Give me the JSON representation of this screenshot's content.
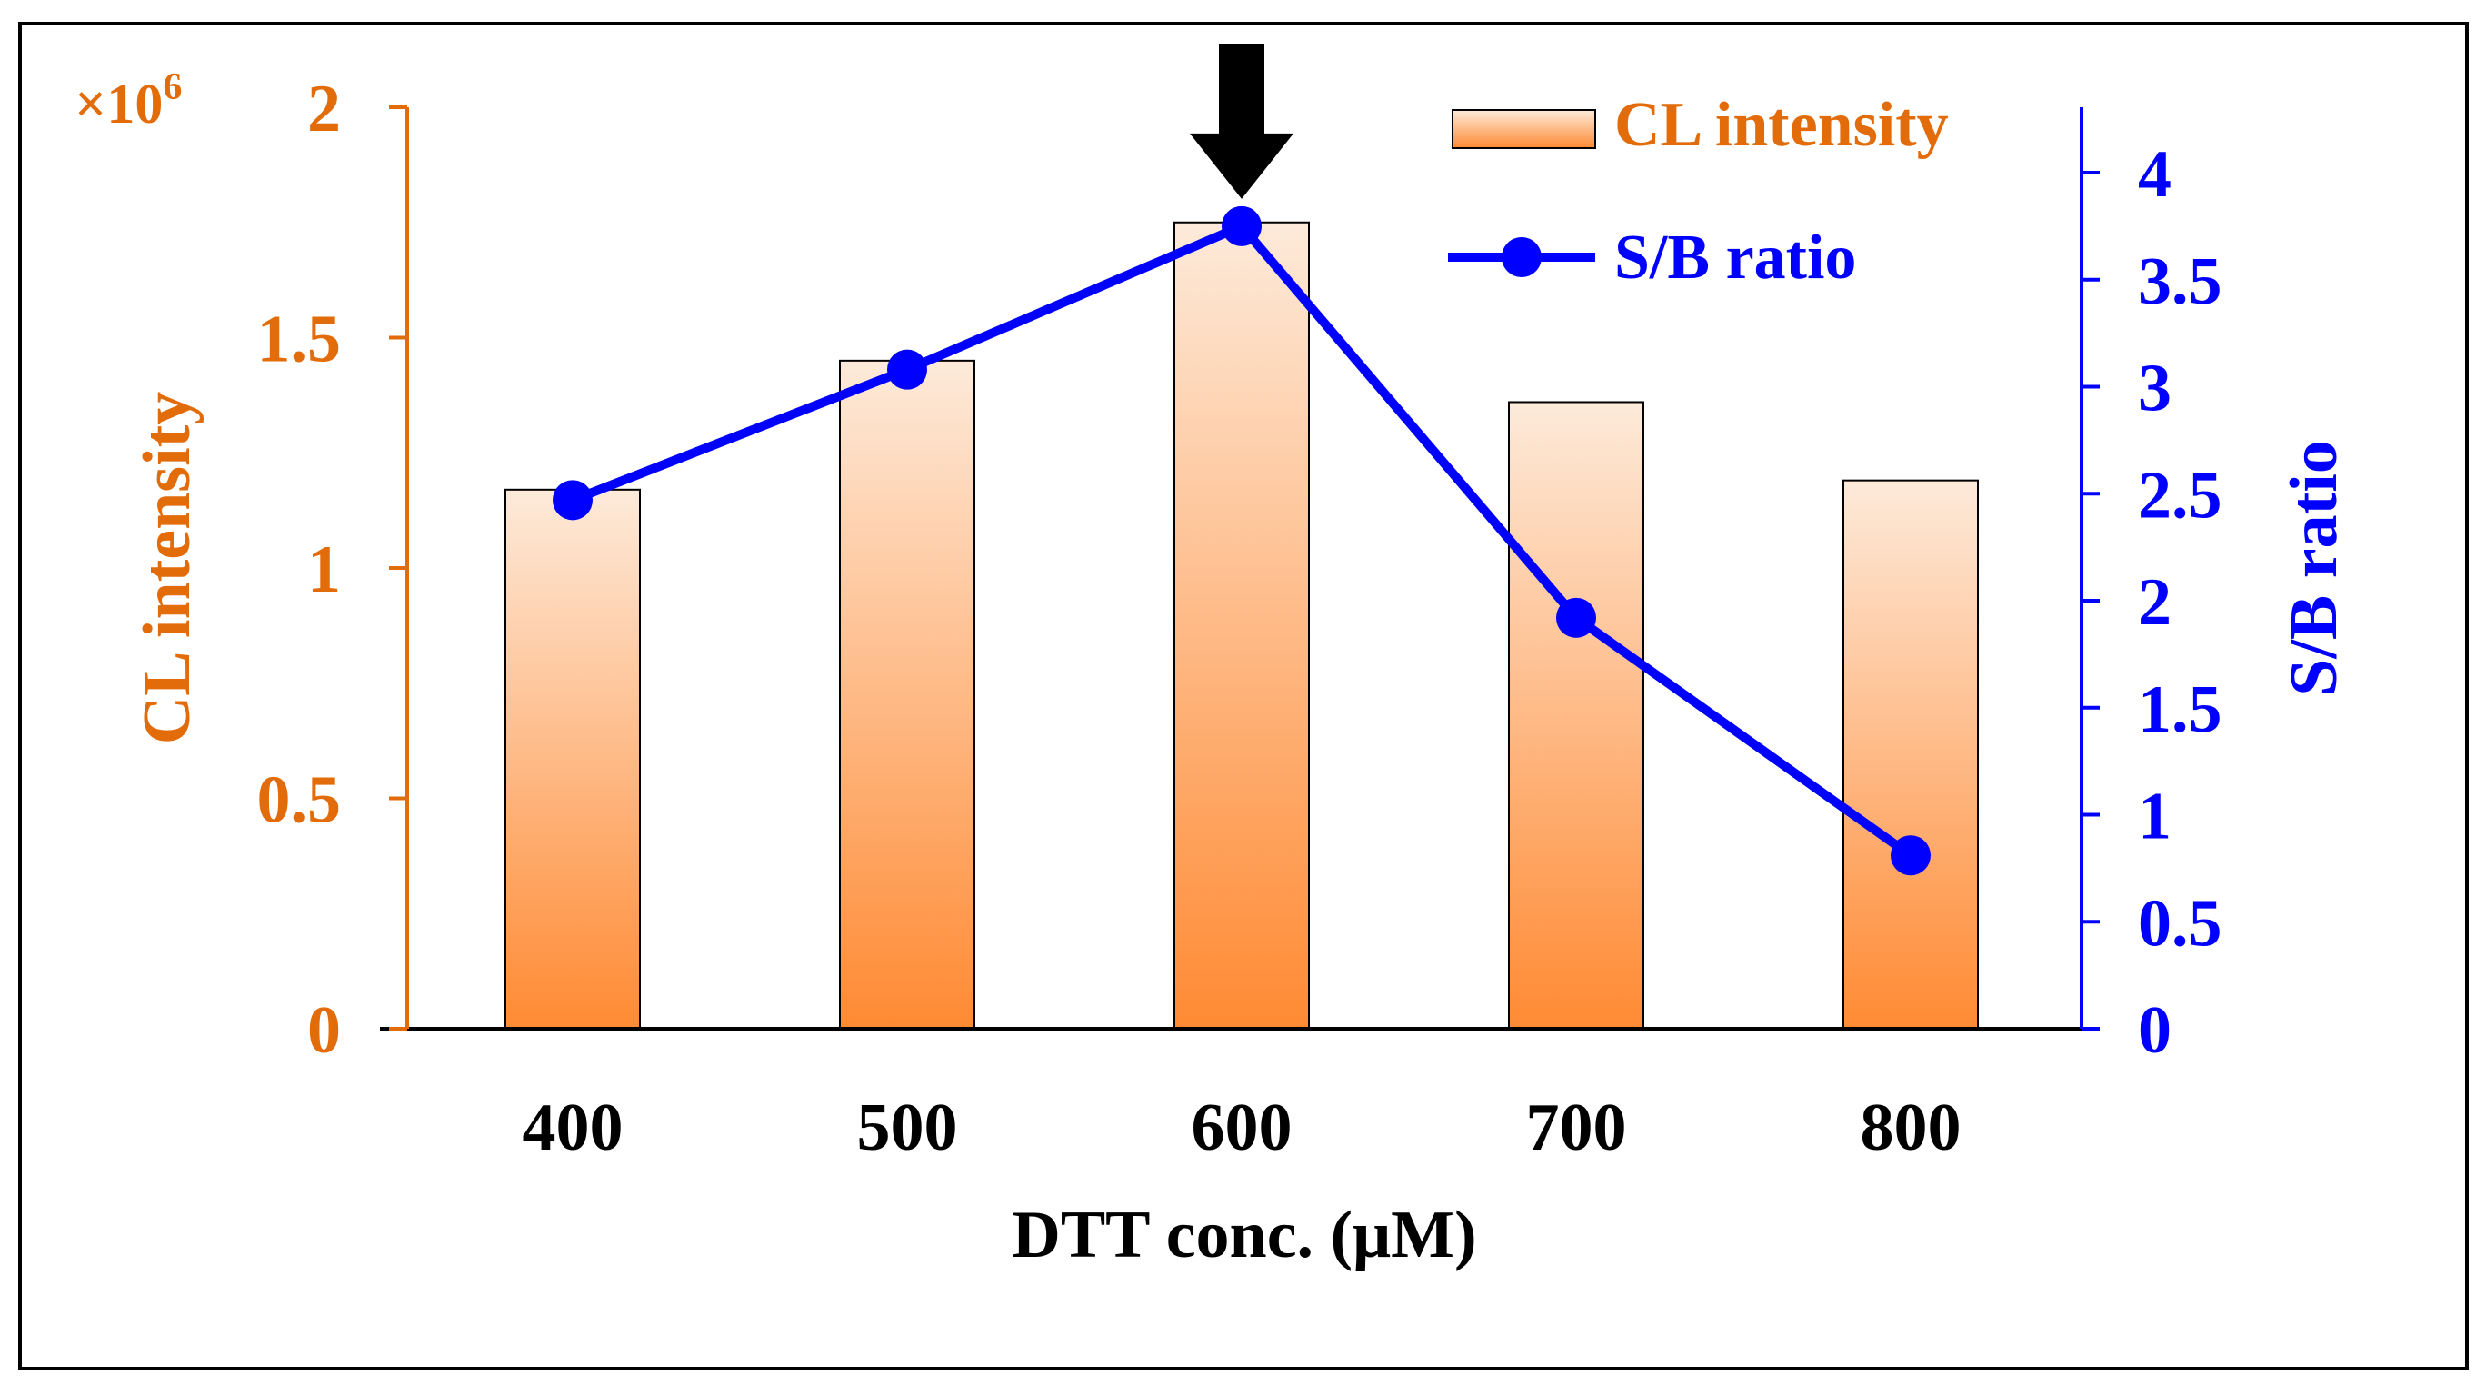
{
  "chart_data": {
    "type": "bar+line",
    "xlabel": "DTT conc. (μM)",
    "categories": [
      "400",
      "500",
      "600",
      "700",
      "800"
    ],
    "left_axis": {
      "label": "CL intensity",
      "multiplier": "×10",
      "multiplier_exponent": "6",
      "ylim": [
        0,
        2
      ],
      "ticks": [
        "0",
        "0.5",
        "1",
        "1.5",
        "2"
      ],
      "color": "#E36C0A"
    },
    "right_axis": {
      "label": "S/B ratio",
      "ylim": [
        0,
        4.3
      ],
      "ticks": [
        "0",
        "0.5",
        "1",
        "1.5",
        "2",
        "2.5",
        "3",
        "3.5",
        "4"
      ],
      "color": "#0000FF"
    },
    "series": [
      {
        "name": "CL intensity",
        "kind": "bar",
        "axis": "left",
        "values": [
          1.17,
          1.45,
          1.75,
          1.36,
          1.19
        ],
        "color_top": "#FDEADA",
        "color_bottom": "#FF8A33"
      },
      {
        "name": "S/B ratio",
        "kind": "line",
        "axis": "right",
        "values": [
          2.47,
          3.08,
          3.75,
          1.92,
          0.81
        ],
        "color": "#0000FF"
      }
    ],
    "legend": {
      "placement": "top-right"
    },
    "annotation": {
      "type": "down-arrow",
      "at_category": "600",
      "color": "#000000"
    }
  }
}
